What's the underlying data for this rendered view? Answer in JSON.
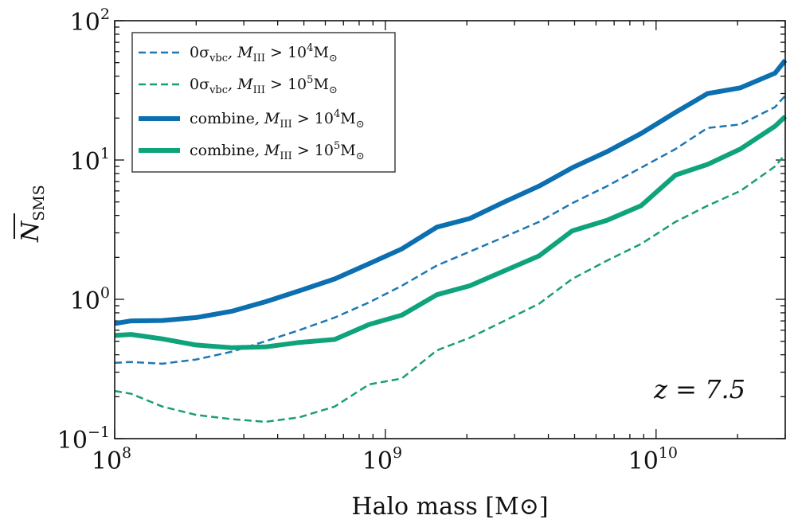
{
  "chart_data": {
    "type": "line",
    "title": "",
    "xlabel": "Halo mass [M⊙]",
    "ylabel": "N̅_SMS",
    "ylabel_main": "N",
    "ylabel_sub": "SMS",
    "xscale": "log",
    "yscale": "log",
    "xlim": [
      100000000.0,
      30000000000.0
    ],
    "ylim": [
      0.1,
      100
    ],
    "x_ticks": [
      {
        "value": 100000000.0,
        "base": "10",
        "exp": "8"
      },
      {
        "value": 1000000000.0,
        "base": "10",
        "exp": "9"
      },
      {
        "value": 10000000000.0,
        "base": "10",
        "exp": "10"
      }
    ],
    "y_ticks": [
      {
        "value": 0.1,
        "base": "10",
        "exp": "−1"
      },
      {
        "value": 1,
        "base": "10",
        "exp": "0"
      },
      {
        "value": 10,
        "base": "10",
        "exp": "1"
      },
      {
        "value": 100,
        "base": "10",
        "exp": "2"
      }
    ],
    "annotation": "z = 7.5",
    "legend_position": "top-left",
    "series": [
      {
        "name": "0σ_vbc, M_III > 10^4 M⊙",
        "label_parts": [
          "0σ",
          "vbc",
          ", M",
          "III",
          " > 10",
          "4",
          "M",
          "⊙"
        ],
        "color": "#1f77b4",
        "style": "dashed",
        "width": 2.5,
        "x": [
          100000000.0,
          115000000.0,
          150000000.0,
          200000000.0,
          270000000.0,
          360000000.0,
          480000000.0,
          650000000.0,
          870000000.0,
          1150000000.0,
          1550000000.0,
          2050000000.0,
          2750000000.0,
          3700000000.0,
          4900000000.0,
          6600000000.0,
          8800000000.0,
          11800000000.0,
          15500000000.0,
          20500000000.0,
          27500000000.0,
          30000000000.0
        ],
        "y": [
          0.35,
          0.355,
          0.345,
          0.37,
          0.42,
          0.5,
          0.6,
          0.74,
          0.95,
          1.25,
          1.75,
          2.2,
          2.8,
          3.6,
          4.9,
          6.5,
          8.8,
          12.0,
          17.0,
          18.0,
          24.0,
          29.0
        ]
      },
      {
        "name": "0σ_vbc, M_III > 10^5 M⊙",
        "label_parts": [
          "0σ",
          "vbc",
          ", M",
          "III",
          " > 10",
          "5",
          "M",
          "⊙"
        ],
        "color": "#1a9e73",
        "style": "dashed",
        "width": 2.5,
        "x": [
          100000000.0,
          115000000.0,
          150000000.0,
          200000000.0,
          270000000.0,
          360000000.0,
          480000000.0,
          650000000.0,
          870000000.0,
          1150000000.0,
          1550000000.0,
          2050000000.0,
          2750000000.0,
          3700000000.0,
          4900000000.0,
          6600000000.0,
          8800000000.0,
          11800000000.0,
          15500000000.0,
          20500000000.0,
          27500000000.0,
          30000000000.0
        ],
        "y": [
          0.22,
          0.21,
          0.17,
          0.148,
          0.138,
          0.132,
          0.142,
          0.17,
          0.245,
          0.27,
          0.43,
          0.53,
          0.7,
          0.93,
          1.4,
          1.9,
          2.5,
          3.6,
          4.7,
          6.0,
          9.0,
          11.0
        ]
      },
      {
        "name": "combine, M_III > 10^4 M⊙",
        "label_parts": [
          "combine",
          "",
          ", M",
          "III",
          " > 10",
          "4",
          "M",
          "⊙"
        ],
        "color": "#0c6fb0",
        "style": "solid",
        "width": 6,
        "x": [
          100000000.0,
          115000000.0,
          150000000.0,
          200000000.0,
          270000000.0,
          360000000.0,
          480000000.0,
          650000000.0,
          870000000.0,
          1150000000.0,
          1550000000.0,
          2050000000.0,
          2750000000.0,
          3700000000.0,
          4900000000.0,
          6600000000.0,
          8800000000.0,
          11800000000.0,
          15500000000.0,
          20500000000.0,
          27500000000.0,
          30000000000.0
        ],
        "y": [
          0.67,
          0.7,
          0.705,
          0.74,
          0.82,
          0.96,
          1.15,
          1.4,
          1.8,
          2.3,
          3.3,
          3.8,
          5.0,
          6.5,
          8.8,
          11.5,
          15.5,
          22.0,
          30.0,
          33.0,
          42.0,
          52.0
        ]
      },
      {
        "name": "combine, M_III > 10^5 M⊙",
        "label_parts": [
          "combine",
          "",
          ", M",
          "III",
          " > 10",
          "5",
          "M",
          "⊙"
        ],
        "color": "#0fa37c",
        "style": "solid",
        "width": 6,
        "x": [
          100000000.0,
          115000000.0,
          150000000.0,
          200000000.0,
          270000000.0,
          360000000.0,
          480000000.0,
          650000000.0,
          870000000.0,
          1150000000.0,
          1550000000.0,
          2050000000.0,
          2750000000.0,
          3700000000.0,
          4900000000.0,
          6600000000.0,
          8800000000.0,
          11800000000.0,
          15500000000.0,
          20500000000.0,
          27500000000.0,
          30000000000.0
        ],
        "y": [
          0.55,
          0.56,
          0.52,
          0.47,
          0.45,
          0.455,
          0.49,
          0.515,
          0.66,
          0.77,
          1.08,
          1.25,
          1.6,
          2.05,
          3.1,
          3.7,
          4.7,
          7.8,
          9.3,
          12.0,
          17.5,
          20.5
        ]
      }
    ]
  }
}
